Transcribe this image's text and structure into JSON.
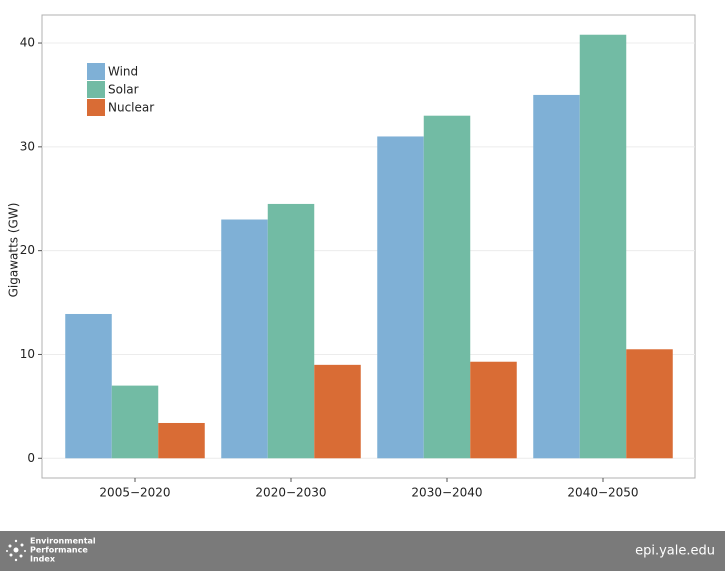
{
  "chart_data": {
    "type": "bar",
    "y_label": "Gigawatts (GW)",
    "categories": [
      "2005−2020",
      "2020−2030",
      "2030−2040",
      "2040−2050"
    ],
    "series": [
      {
        "name": "Wind",
        "color": "#7fb0d6",
        "values": [
          13.9,
          23,
          31,
          35
        ]
      },
      {
        "name": "Solar",
        "color": "#72bba4",
        "values": [
          7,
          24.5,
          33,
          40.8
        ]
      },
      {
        "name": "Nuclear",
        "color": "#d96c35",
        "values": [
          3.4,
          9,
          9.3,
          10.5
        ]
      }
    ],
    "ylim": [
      -1.9,
      42.7
    ],
    "yticks": [
      0,
      10,
      20,
      30,
      40
    ],
    "grid": true,
    "legend": "top-left"
  },
  "footer": {
    "logo_lines": [
      "Environmental",
      "Performance",
      "Index"
    ],
    "url": "epi.yale.edu"
  }
}
